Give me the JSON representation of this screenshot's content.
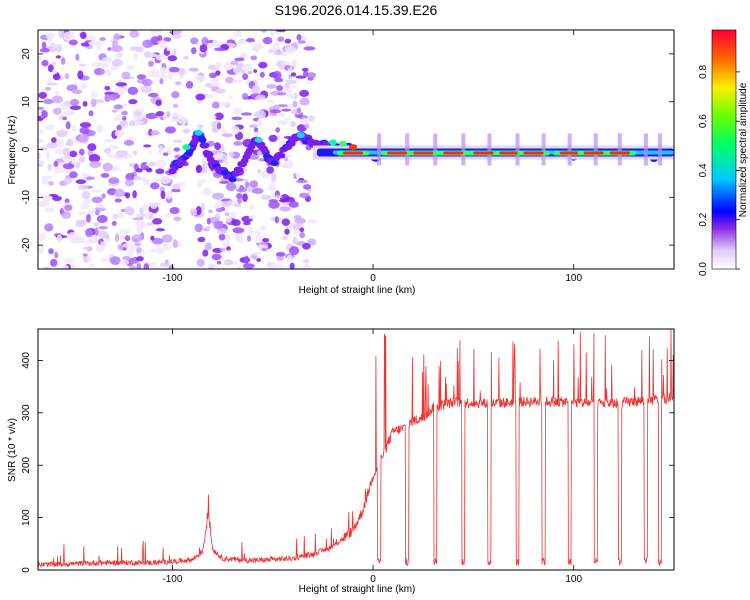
{
  "title": "S196.2026.014.15.39.E26",
  "chart_data": [
    {
      "type": "heatmap",
      "name": "spectrogram",
      "xlabel": "Height of straight line (km)",
      "ylabel": "Frequency (Hz)",
      "xlim": [
        -167,
        150
      ],
      "ylim": [
        -25,
        25
      ],
      "xticks": [
        -100,
        0,
        100
      ],
      "yticks": [
        -20,
        -10,
        0,
        10,
        20
      ],
      "colorbar": {
        "label": "Normalized spectral amplitude",
        "range": [
          0,
          0.97
        ],
        "ticks": [
          0,
          0.2,
          0.4,
          0.6,
          0.8
        ],
        "tick_labels": [
          "0.0",
          "0.2",
          "0.4",
          "0.6",
          "0.8"
        ]
      },
      "regions": [
        {
          "x_from": -167,
          "x_to": -30,
          "description": "scattered noise",
          "amplitude": [
            0.05,
            0.25
          ]
        },
        {
          "x_from": -30,
          "x_to": 150,
          "description": "narrow carrier near 0 Hz",
          "frequency": 0,
          "amplitude": [
            0.2,
            0.95
          ]
        }
      ],
      "track": [
        {
          "x": -100,
          "y": -4
        },
        {
          "x": -92,
          "y": -1
        },
        {
          "x": -87,
          "y": 3.5
        },
        {
          "x": -80,
          "y": -3
        },
        {
          "x": -70,
          "y": -6
        },
        {
          "x": -58,
          "y": 2
        },
        {
          "x": -50,
          "y": -3
        },
        {
          "x": -38,
          "y": 3
        },
        {
          "x": -30,
          "y": 1.5
        },
        {
          "x": -20,
          "y": 0.5
        },
        {
          "x": -10,
          "y": 0.3
        },
        {
          "x": 0,
          "y": -1.5
        },
        {
          "x": 10,
          "y": -0.5
        },
        {
          "x": 150,
          "y": -1.5
        }
      ],
      "peaks": [
        -10,
        12,
        25,
        40,
        55,
        68,
        80,
        98,
        110,
        123
      ]
    },
    {
      "type": "line",
      "name": "snr",
      "xlabel": "Height of straight line (km)",
      "ylabel": "SNR (10 * v/v)",
      "xlim": [
        -167,
        150
      ],
      "ylim": [
        0,
        460
      ],
      "xticks": [
        -100,
        0,
        100
      ],
      "yticks": [
        0,
        100,
        200,
        300,
        400
      ],
      "color": "#ee3333",
      "series": [
        {
          "name": "SNR",
          "x": [
            -167,
            -150,
            -130,
            -110,
            -100,
            -90,
            -85,
            -82,
            -80,
            -75,
            -60,
            -40,
            -30,
            -20,
            -10,
            -5,
            0,
            5,
            10,
            15,
            20,
            25,
            30,
            40,
            60,
            80,
            100,
            120,
            140,
            150
          ],
          "values": [
            10,
            12,
            14,
            14,
            16,
            20,
            35,
            110,
            40,
            22,
            18,
            22,
            30,
            45,
            75,
            115,
            180,
            220,
            265,
            270,
            285,
            290,
            310,
            320,
            318,
            322,
            320,
            318,
            325,
            330
          ]
        }
      ],
      "dropouts": [
        3,
        17,
        31,
        45,
        58,
        72,
        85,
        98,
        111,
        123,
        136,
        143
      ],
      "spike_max": 460
    }
  ]
}
